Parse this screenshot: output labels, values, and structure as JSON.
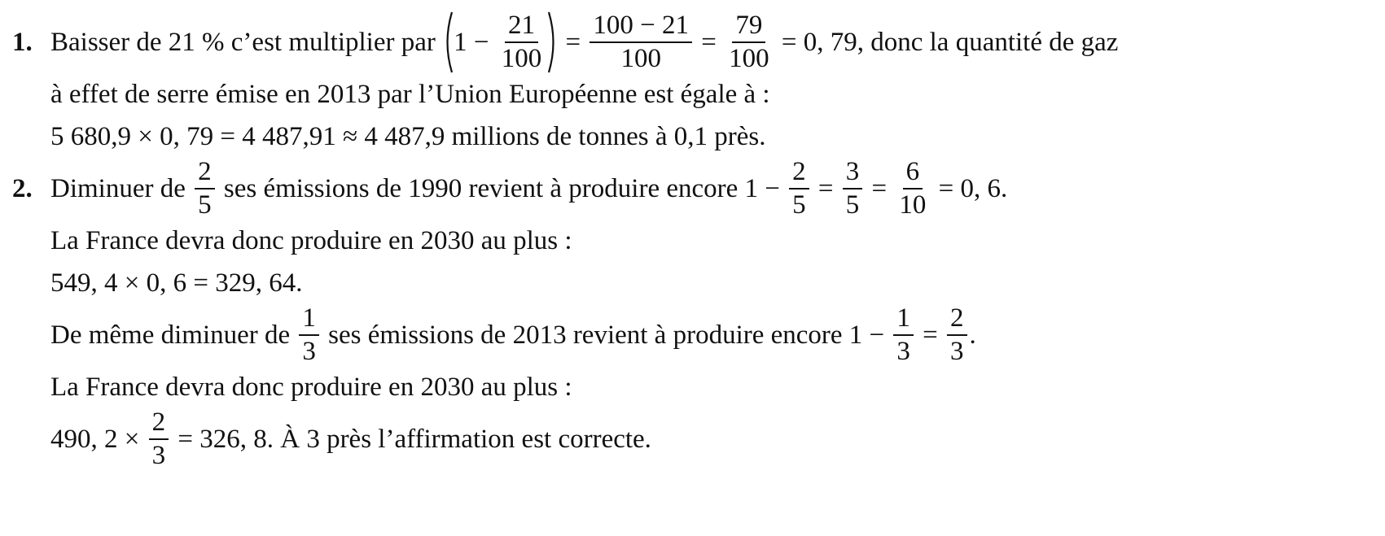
{
  "items": [
    {
      "number": "1.",
      "lines": [
        [
          {
            "t": "Baisser de 21 % c’est multiplier par "
          },
          {
            "paren": [
              {
                "t": "1 − "
              },
              {
                "num": "21",
                "den": "100"
              }
            ]
          },
          {
            "t": " = "
          },
          {
            "num": "100 − 21",
            "den": "100"
          },
          {
            "t": " = "
          },
          {
            "num": "79",
            "den": "100"
          },
          {
            "t": " = 0, 79, donc la quantité de gaz"
          }
        ],
        [
          {
            "t": "à effet de serre émise en 2013 par l’Union Européenne est égale à :"
          }
        ],
        [
          {
            "t": "5 680,9 × 0, 79 = 4 487,91 ≈ 4 487,9 millions de tonnes à 0,1 près."
          }
        ]
      ]
    },
    {
      "number": "2.",
      "lines": [
        [
          {
            "t": "Diminuer de "
          },
          {
            "num": "2",
            "den": "5"
          },
          {
            "t": " ses émissions de 1990 revient à produire encore 1 − "
          },
          {
            "num": "2",
            "den": "5"
          },
          {
            "t": " = "
          },
          {
            "num": "3",
            "den": "5"
          },
          {
            "t": " = "
          },
          {
            "num": "6",
            "den": "10"
          },
          {
            "t": " = 0, 6."
          }
        ],
        [
          {
            "t": "La France devra donc produire en 2030 au plus :"
          }
        ],
        [
          {
            "t": "549, 4 × 0, 6 = 329, 64."
          }
        ],
        [
          {
            "t": "De même diminuer de "
          },
          {
            "num": "1",
            "den": "3"
          },
          {
            "t": " ses émissions de 2013 revient à produire encore 1 − "
          },
          {
            "num": "1",
            "den": "3"
          },
          {
            "t": " = "
          },
          {
            "num": "2",
            "den": "3"
          },
          {
            "t": "."
          }
        ],
        [
          {
            "t": "La France devra donc produire en 2030 au plus :"
          }
        ],
        [
          {
            "t": "490, 2 × "
          },
          {
            "num": "2",
            "den": "3"
          },
          {
            "t": " = 326, 8. À 3 près l’affirmation est correcte."
          }
        ]
      ]
    }
  ]
}
